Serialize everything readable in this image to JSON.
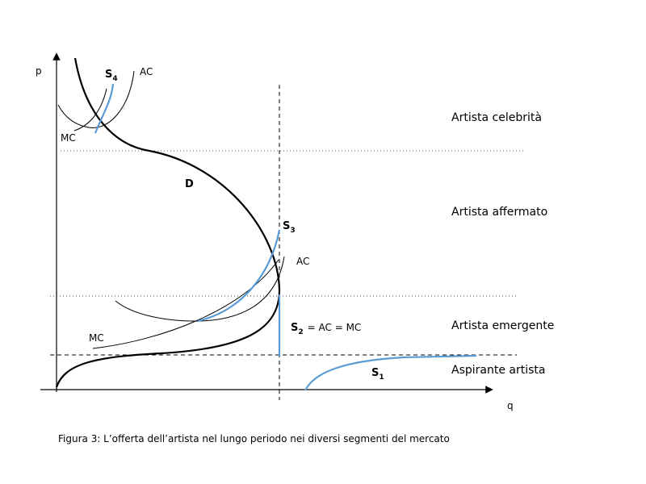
{
  "axes": {
    "y_label": "p",
    "x_label": "q"
  },
  "curve_labels": {
    "s4": {
      "main": "S",
      "sub": "4"
    },
    "ac_top": "AC",
    "mc_top": "MC",
    "d": "D",
    "s3": {
      "main": "S",
      "sub": "3"
    },
    "ac_mid": "AC",
    "mc_mid": "MC",
    "s2": {
      "main": "S",
      "sub": "2",
      "rest": "= AC = MC"
    },
    "s1": {
      "main": "S",
      "sub": "1"
    }
  },
  "segments": [
    "Artista celebrità",
    "Artista affermato",
    "Artista emergente",
    "Aspirante artista"
  ],
  "caption": "Figura 3: L’offerta dell’artista nel lungo periodo nei diversi segmenti del mercato"
}
